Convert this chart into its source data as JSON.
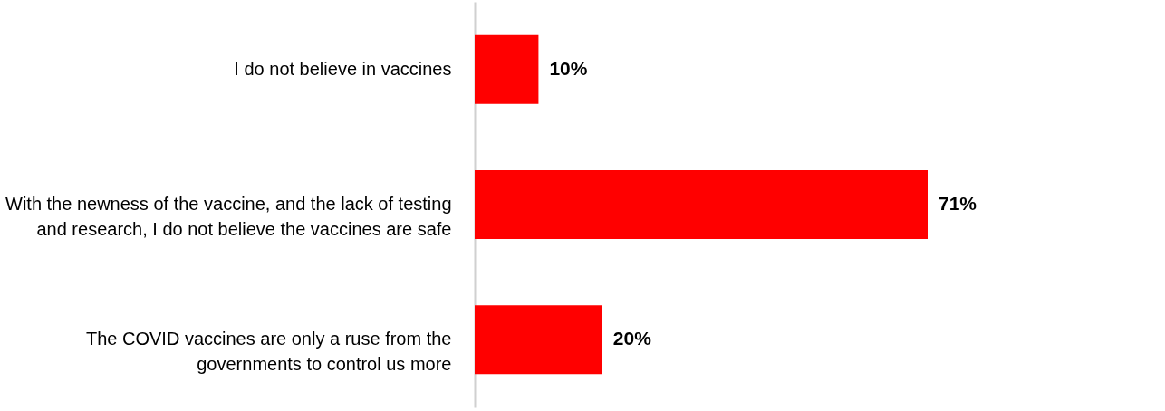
{
  "chart_data": {
    "type": "bar",
    "orientation": "horizontal",
    "categories": [
      "I do not believe in vaccines",
      "With the newness of the vaccine, and the lack of testing\nand research, I do not believe the vaccines are safe",
      "The COVID vaccines are only a ruse from the\ngovernments to control us more"
    ],
    "values": [
      10,
      71,
      20
    ],
    "color": "#ff0000",
    "value_labels": [
      "10%",
      "71%",
      "20%"
    ]
  }
}
